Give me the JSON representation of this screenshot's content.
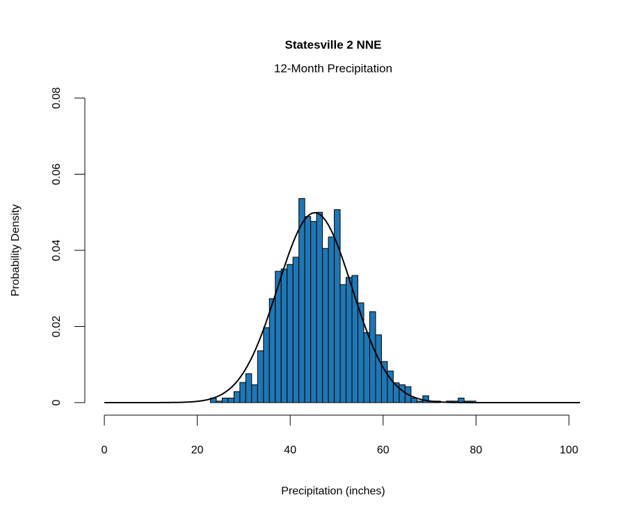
{
  "chart_data": {
    "type": "bar",
    "title": "Statesville 2 NNE",
    "subtitle": "12-Month Precipitation",
    "xlabel": "Precipitation (inches)",
    "ylabel": "Probability Density",
    "xlim": [
      0,
      102.6
    ],
    "ylim": [
      0,
      0.08
    ],
    "x_ticks": [
      "0",
      "20",
      "40",
      "60",
      "80",
      "100"
    ],
    "y_ticks": [
      "0",
      "0.02",
      "0.04",
      "0.06",
      "0.08"
    ],
    "bin_start": 22.82,
    "bin_width": 1.27,
    "density": [
      0.0012,
      0.0004,
      0.0012,
      0.0012,
      0.0029,
      0.0053,
      0.0076,
      0.0047,
      0.0136,
      0.0197,
      0.0273,
      0.0345,
      0.0351,
      0.0363,
      0.0382,
      0.0536,
      0.0489,
      0.0476,
      0.05,
      0.0405,
      0.0435,
      0.0507,
      0.031,
      0.0329,
      0.0334,
      0.0262,
      0.0184,
      0.0239,
      0.0178,
      0.0108,
      0.0083,
      0.0052,
      0.0047,
      0.0042,
      0.0012,
      0.0004,
      0.0018,
      0.0004,
      0.0004,
      0.0,
      0.0004,
      0.0004,
      0.0012,
      0.0004,
      0.0004
    ],
    "fit_curve": {
      "type": "normal",
      "mean": 45.3,
      "sd": 8.0
    },
    "grid": false,
    "bar_color": "#1f77b4",
    "curve_color": "#000000"
  }
}
